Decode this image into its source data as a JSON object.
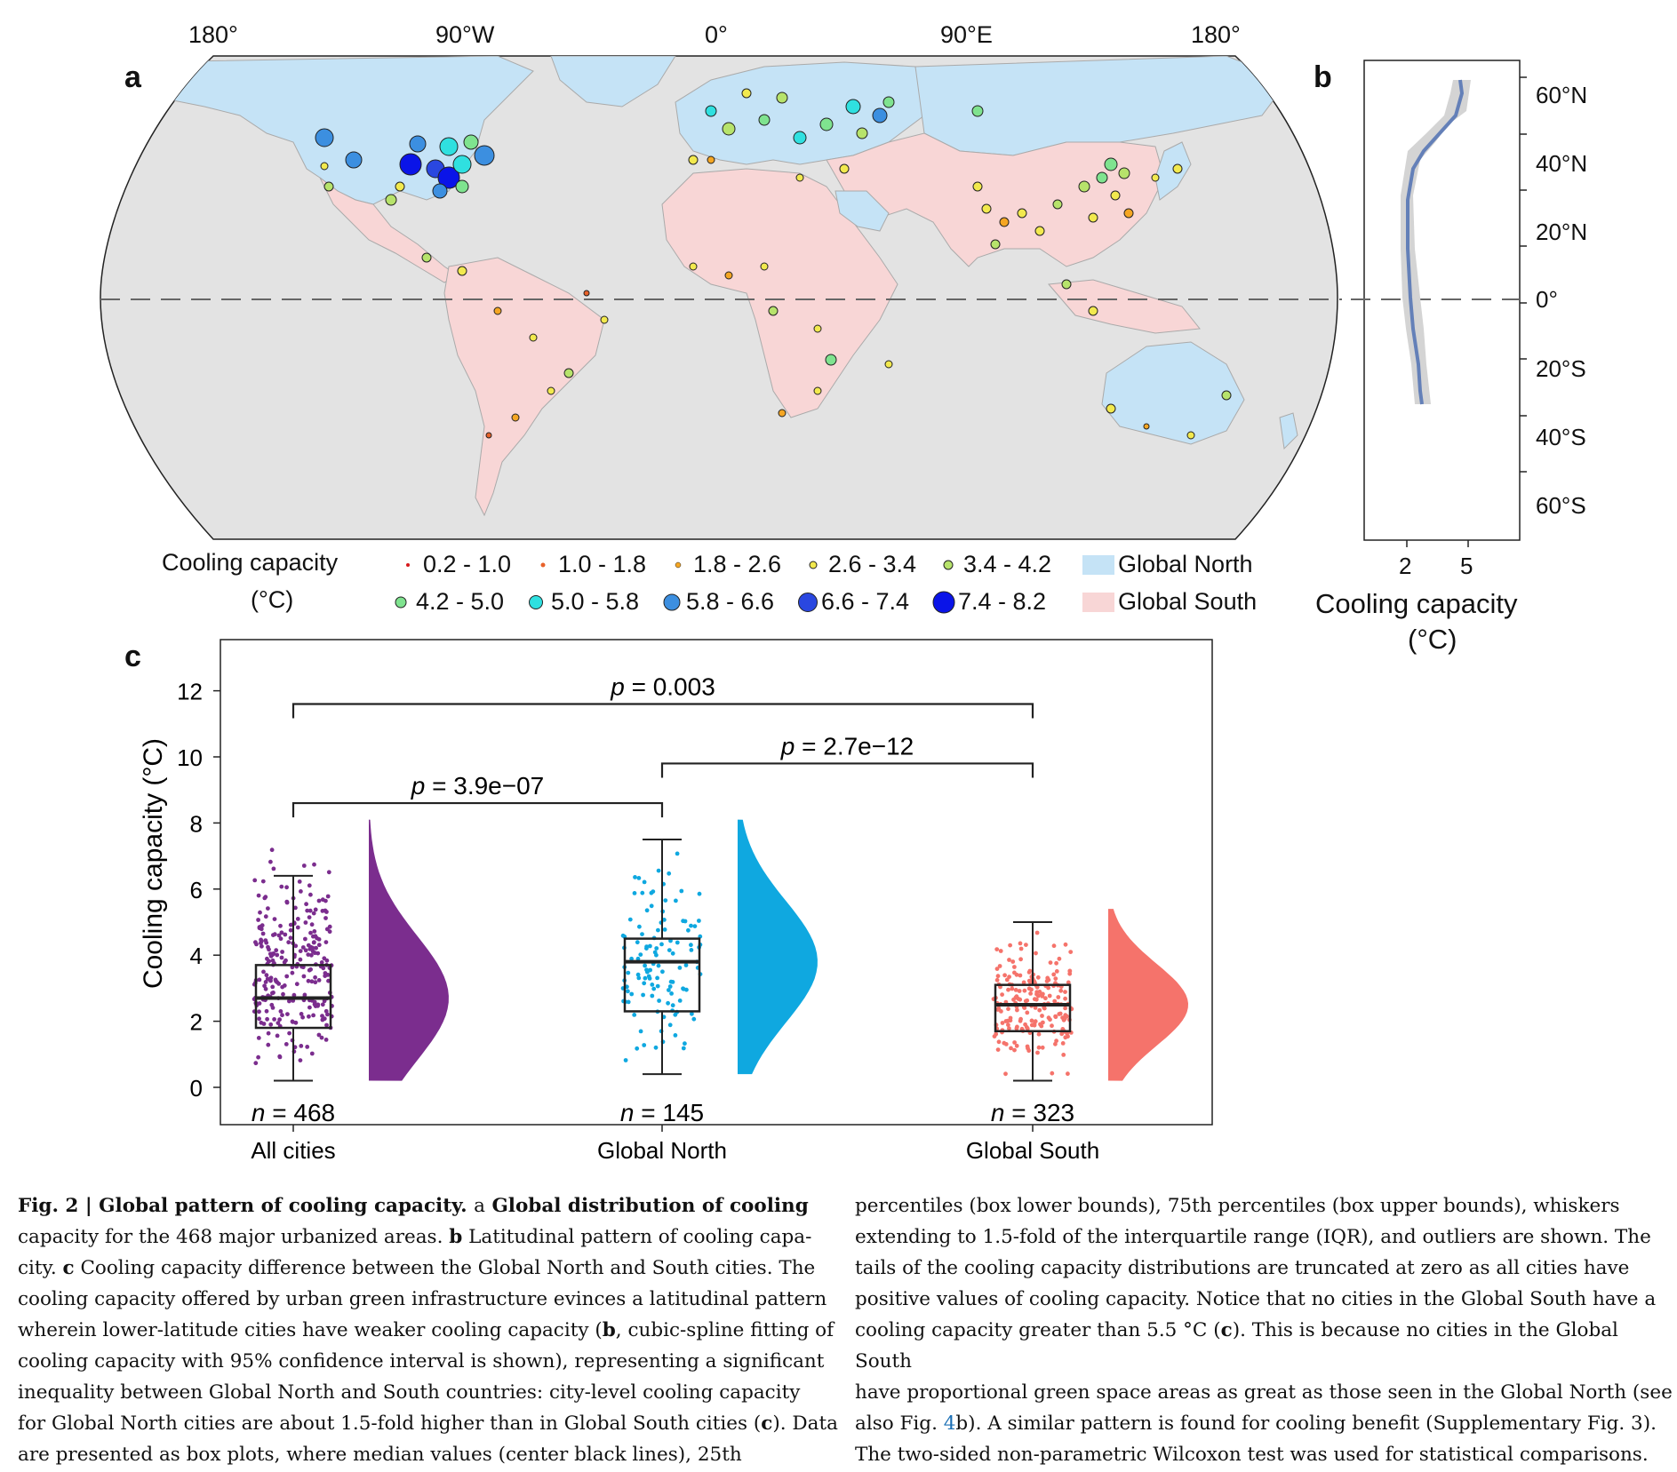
{
  "panels": {
    "a": "a",
    "b": "b",
    "c": "c"
  },
  "map": {
    "longitude_labels": [
      "180°",
      "90°W",
      "0°",
      "90°E",
      "180°"
    ],
    "legend_title_line1": "Cooling capacity",
    "legend_title_line2": "(°C)",
    "legend_bins": [
      {
        "label": "0.2 - 1.0",
        "color": "#d7191c"
      },
      {
        "label": "1.0 - 1.8",
        "color": "#e8622a"
      },
      {
        "label": "1.8 - 2.6",
        "color": "#f5a623"
      },
      {
        "label": "2.6 - 3.4",
        "color": "#f2e94e"
      },
      {
        "label": "3.4 - 4.2",
        "color": "#b7e36b"
      },
      {
        "label": "4.2 - 5.0",
        "color": "#7fe38f"
      },
      {
        "label": "5.0 - 5.8",
        "color": "#2fe0e0"
      },
      {
        "label": "5.8 - 6.6",
        "color": "#3c8fe0"
      },
      {
        "label": "6.6 - 7.4",
        "color": "#2a47e0"
      },
      {
        "label": "7.4 - 8.2",
        "color": "#0a14e8"
      }
    ],
    "regions": [
      {
        "label": "Global North",
        "color": "#c5e3f6"
      },
      {
        "label": "Global South",
        "color": "#f8d6d6"
      }
    ],
    "colors": {
      "ocean": "#e3e3e3",
      "global_north": "#c5e3f6",
      "global_south": "#f8d6d6"
    }
  },
  "latitude_panel": {
    "lat_labels": [
      "60°N",
      "40°N",
      "20°N",
      "0°",
      "20°S",
      "40°S",
      "60°S"
    ],
    "x_ticks": [
      "2",
      "5"
    ],
    "xlabel_line1": "Cooling capacity",
    "xlabel_line2": "(°C)"
  },
  "chart_data": {
    "type": "box",
    "ylabel": "Cooling capacity (°C)",
    "ylim": [
      -1,
      13
    ],
    "yticks": [
      "0",
      "2",
      "4",
      "6",
      "8",
      "10",
      "12"
    ],
    "categories": [
      "All cities",
      "Global North",
      "Global South"
    ],
    "n_labels": [
      "= 468",
      "= 145",
      "= 323"
    ],
    "series": [
      {
        "color": "#7b2d8e",
        "min": 0.2,
        "q1": 1.8,
        "median": 2.7,
        "q3": 3.7,
        "max": 6.4,
        "max_point": 8.1
      },
      {
        "color": "#0fa8e0",
        "min": 0.4,
        "q1": 2.3,
        "median": 3.8,
        "q3": 4.5,
        "max": 7.5,
        "max_point": 8.1
      },
      {
        "color": "#f5736b",
        "min": 0.2,
        "q1": 1.7,
        "median": 2.5,
        "q3": 3.1,
        "max": 5.0,
        "max_point": 5.4
      }
    ],
    "comparisons": [
      {
        "label": "= 0.003",
        "from": 0,
        "to": 2,
        "y": 11.6
      },
      {
        "label": "= 2.7e−12",
        "from": 1,
        "to": 2,
        "y": 9.8
      },
      {
        "label": "= 3.9e−07",
        "from": 0,
        "to": 1,
        "y": 8.6
      }
    ]
  },
  "caption": {
    "col1": [
      [
        "b",
        "Fig. 2 | Global pattern of cooling capacity. ",
        "n",
        "a",
        "b",
        " Global distribution of cooling"
      ],
      [
        "n",
        "capacity for the 468 major urbanized areas. ",
        "b",
        "b",
        "n",
        " Latitudinal pattern of cooling capa-"
      ],
      [
        "n",
        "city. ",
        "b",
        "c",
        "n",
        " Cooling capacity difference between the Global North and South cities. The"
      ],
      [
        "n",
        "cooling capacity offered by urban green infrastructure evinces a latitudinal pattern"
      ],
      [
        "n",
        "wherein lower-latitude cities have weaker cooling capacity (",
        "b",
        "b",
        "n",
        ", cubic-spline fitting of"
      ],
      [
        "n",
        "cooling capacity with 95% confidence interval is shown), representing a significant"
      ],
      [
        "n",
        "inequality between Global North and South countries: city-level cooling capacity"
      ],
      [
        "n",
        "for Global North cities are about 1.5-fold higher than in Global South cities (",
        "b",
        "c",
        "n",
        "). Data"
      ],
      [
        "n",
        "are presented as box plots, where median values (center black lines), 25th"
      ]
    ],
    "col2": [
      [
        "n",
        "percentiles (box lower bounds), 75th percentiles (box upper bounds), whiskers"
      ],
      [
        "n",
        "extending to 1.5-fold of the interquartile range (IQR), and outliers are shown. The"
      ],
      [
        "n",
        "tails of the cooling capacity distributions are truncated at zero as all cities have"
      ],
      [
        "n",
        "positive values of cooling capacity. Notice that no cities in the Global South have a"
      ],
      [
        "n",
        "cooling capacity greater than 5.5 °C (",
        "b",
        "c",
        "n",
        "). This is because no cities in the Global South"
      ],
      [
        "n",
        "have proportional green space areas as great as those seen in the Global North (see"
      ],
      [
        "n",
        "also Fig. ",
        "l",
        "4",
        "n",
        "b). A similar pattern is found for cooling benefit (Supplementary Fig. 3)."
      ],
      [
        "n",
        "The two-sided non-parametric Wilcoxon test was used for statistical comparisons."
      ]
    ]
  }
}
